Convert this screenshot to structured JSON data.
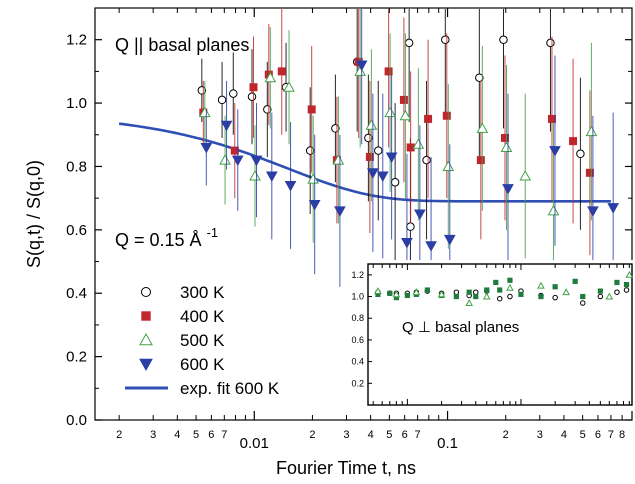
{
  "chart_data": [
    {
      "type": "scatter",
      "xscale": "log",
      "xlim": [
        0.0015,
        0.9
      ],
      "ylim": [
        0.0,
        1.3
      ],
      "xlabel": "Fourier Time t, ns",
      "ylabel": "S(q,t) / S(q,0)",
      "x_major_ticks": [
        "0.01",
        "0.1"
      ],
      "x_minor_ticks": [
        "2",
        "3",
        "4",
        "5",
        "6",
        "7",
        "2",
        "3",
        "4",
        "5",
        "6",
        "7",
        "2",
        "3",
        "4",
        "5",
        "6",
        "7",
        "8"
      ],
      "y_ticks": [
        "0.0",
        "0.2",
        "0.4",
        "0.6",
        "0.8",
        "1.0",
        "1.2"
      ],
      "annotation_top": "Q || basal planes",
      "annotation_q": "Q = 0.15 Å",
      "annotation_q_sup": "-1",
      "legend_placement": "lower-left",
      "series": [
        {
          "name": "300 K",
          "marker": "circle-open",
          "color": "#000000",
          "points": [
            [
              0.0055,
              1.04,
              0.1
            ],
            [
              0.007,
              1.01,
              0.12
            ],
            [
              0.008,
              1.03,
              0.13
            ],
            [
              0.01,
              1.02,
              0.15
            ],
            [
              0.012,
              0.98,
              0.15
            ],
            [
              0.015,
              1.05,
              0.14
            ],
            [
              0.02,
              0.85,
              0.2
            ],
            [
              0.027,
              0.92,
              0.17
            ],
            [
              0.035,
              1.13,
              0.22
            ],
            [
              0.04,
              0.89,
              0.2
            ],
            [
              0.045,
              0.85,
              0.22
            ],
            [
              0.055,
              0.75,
              0.25
            ],
            [
              0.065,
              1.19,
              0.25
            ],
            [
              0.08,
              0.82,
              0.25
            ],
            [
              0.1,
              1.2,
              0.25
            ],
            [
              0.15,
              1.08,
              0.26
            ],
            [
              0.2,
              1.2,
              0.28
            ],
            [
              0.35,
              1.19,
              0.28
            ],
            [
              0.5,
              0.84,
              0.24
            ],
            [
              0.066,
              0.61,
              0.28
            ]
          ]
        },
        {
          "name": "400 K",
          "marker": "square-filled",
          "color": "#c0272d",
          "points": [
            [
              0.0055,
              0.97,
              0.1
            ],
            [
              0.008,
              0.85,
              0.15
            ],
            [
              0.01,
              1.05,
              0.16
            ],
            [
              0.012,
              1.09,
              0.16
            ],
            [
              0.014,
              1.1,
              0.2
            ],
            [
              0.02,
              0.98,
              0.2
            ],
            [
              0.027,
              0.82,
              0.2
            ],
            [
              0.035,
              1.13,
              0.24
            ],
            [
              0.04,
              0.83,
              0.24
            ],
            [
              0.05,
              1.1,
              0.24
            ],
            [
              0.06,
              1.01,
              0.26
            ],
            [
              0.065,
              0.86,
              0.24
            ],
            [
              0.08,
              0.95,
              0.25
            ],
            [
              0.1,
              0.96,
              0.26
            ],
            [
              0.15,
              0.82,
              0.25
            ],
            [
              0.2,
              0.89,
              0.26
            ],
            [
              0.35,
              0.95,
              0.26
            ],
            [
              0.45,
              0.88,
              0.26
            ],
            [
              0.55,
              0.78,
              0.26
            ]
          ]
        },
        {
          "name": "500 K",
          "marker": "triangle-open",
          "color": "#43a047",
          "points": [
            [
              0.0055,
              0.97,
              0.1
            ],
            [
              0.007,
              0.82,
              0.14
            ],
            [
              0.01,
              0.77,
              0.16
            ],
            [
              0.012,
              1.08,
              0.16
            ],
            [
              0.015,
              1.05,
              0.18
            ],
            [
              0.02,
              0.76,
              0.2
            ],
            [
              0.027,
              0.82,
              0.2
            ],
            [
              0.035,
              1.1,
              0.24
            ],
            [
              0.04,
              0.93,
              0.24
            ],
            [
              0.05,
              0.97,
              0.25
            ],
            [
              0.06,
              0.96,
              0.26
            ],
            [
              0.07,
              0.87,
              0.24
            ],
            [
              0.1,
              0.8,
              0.26
            ],
            [
              0.15,
              0.92,
              0.26
            ],
            [
              0.2,
              0.86,
              0.26
            ],
            [
              0.25,
              0.77,
              0.26
            ],
            [
              0.35,
              0.66,
              0.28
            ],
            [
              0.55,
              0.91,
              0.28
            ]
          ]
        },
        {
          "name": "600 K",
          "marker": "triangle-down-filled",
          "color": "#2a3ea6",
          "points": [
            [
              0.0055,
              0.86,
              0.12
            ],
            [
              0.007,
              0.93,
              0.14
            ],
            [
              0.008,
              0.82,
              0.16
            ],
            [
              0.01,
              0.82,
              0.18
            ],
            [
              0.012,
              0.77,
              0.2
            ],
            [
              0.015,
              0.74,
              0.2
            ],
            [
              0.02,
              0.68,
              0.22
            ],
            [
              0.027,
              0.66,
              0.24
            ],
            [
              0.035,
              1.12,
              0.25
            ],
            [
              0.04,
              0.78,
              0.25
            ],
            [
              0.045,
              0.77,
              0.26
            ],
            [
              0.05,
              0.83,
              0.26
            ],
            [
              0.06,
              0.56,
              0.28
            ],
            [
              0.07,
              0.65,
              0.28
            ],
            [
              0.08,
              0.55,
              0.28
            ],
            [
              0.1,
              0.57,
              0.3
            ],
            [
              0.2,
              0.73,
              0.3
            ],
            [
              0.35,
              0.85,
              0.3
            ],
            [
              0.55,
              0.66,
              0.3
            ],
            [
              0.7,
              0.67,
              0.3
            ]
          ]
        }
      ],
      "fit": {
        "name": "exp. fit 600 K",
        "color": "#2f4fb5",
        "a": 0.69,
        "b": 0.28,
        "tau": 0.015,
        "xrange": [
          0.002,
          0.7
        ]
      }
    },
    {
      "type": "scatter",
      "xscale": "log",
      "ylim": [
        0.0,
        1.3
      ],
      "y_ticks": [
        "1.2",
        "1.0",
        "0.8",
        "0.6",
        "0.4",
        "0.2"
      ],
      "annotation": "Q ⊥ basal planes",
      "series": [
        {
          "name": "open",
          "marker": "circle-open",
          "color": "#000000",
          "points": [
            [
              0.0055,
              1.04
            ],
            [
              0.007,
              1.03
            ],
            [
              0.008,
              1.03
            ],
            [
              0.01,
              1.03
            ],
            [
              0.012,
              1.04
            ],
            [
              0.015,
              1.05
            ],
            [
              0.02,
              1.03
            ],
            [
              0.027,
              1.04
            ],
            [
              0.035,
              1.01
            ],
            [
              0.04,
              1.04
            ],
            [
              0.05,
              1.05
            ],
            [
              0.065,
              0.98
            ],
            [
              0.08,
              1.0
            ],
            [
              0.1,
              1.05
            ],
            [
              0.15,
              1.01
            ],
            [
              0.2,
              0.99
            ],
            [
              0.35,
              0.94
            ],
            [
              0.5,
              1.0
            ],
            [
              0.7,
              1.04
            ],
            [
              0.85,
              1.06
            ]
          ]
        },
        {
          "name": "filled",
          "marker": "square-filled",
          "color": "#1e7d3c",
          "points": [
            [
              0.0055,
              1.02
            ],
            [
              0.007,
              1.03
            ],
            [
              0.008,
              0.99
            ],
            [
              0.01,
              1.01
            ],
            [
              0.012,
              1.02
            ],
            [
              0.015,
              1.06
            ],
            [
              0.02,
              1.01
            ],
            [
              0.027,
              1.0
            ],
            [
              0.035,
              1.04
            ],
            [
              0.04,
              1.0
            ],
            [
              0.05,
              1.06
            ],
            [
              0.06,
              1.13
            ],
            [
              0.065,
              1.06
            ],
            [
              0.08,
              1.15
            ],
            [
              0.1,
              1.02
            ],
            [
              0.15,
              1.0
            ],
            [
              0.2,
              1.09
            ],
            [
              0.3,
              1.14
            ],
            [
              0.35,
              1.0
            ],
            [
              0.5,
              1.05
            ],
            [
              0.7,
              1.13
            ],
            [
              0.85,
              1.11
            ]
          ]
        },
        {
          "name": "triangle",
          "marker": "triangle-open",
          "color": "#43a047",
          "points": [
            [
              0.0055,
              1.05
            ],
            [
              0.008,
              1.02
            ],
            [
              0.012,
              1.04
            ],
            [
              0.02,
              1.02
            ],
            [
              0.035,
              0.94
            ],
            [
              0.05,
              1.0
            ],
            [
              0.08,
              1.08
            ],
            [
              0.15,
              1.1
            ],
            [
              0.25,
              1.04
            ],
            [
              0.6,
              1.0
            ],
            [
              0.9,
              1.2
            ]
          ]
        }
      ]
    }
  ]
}
